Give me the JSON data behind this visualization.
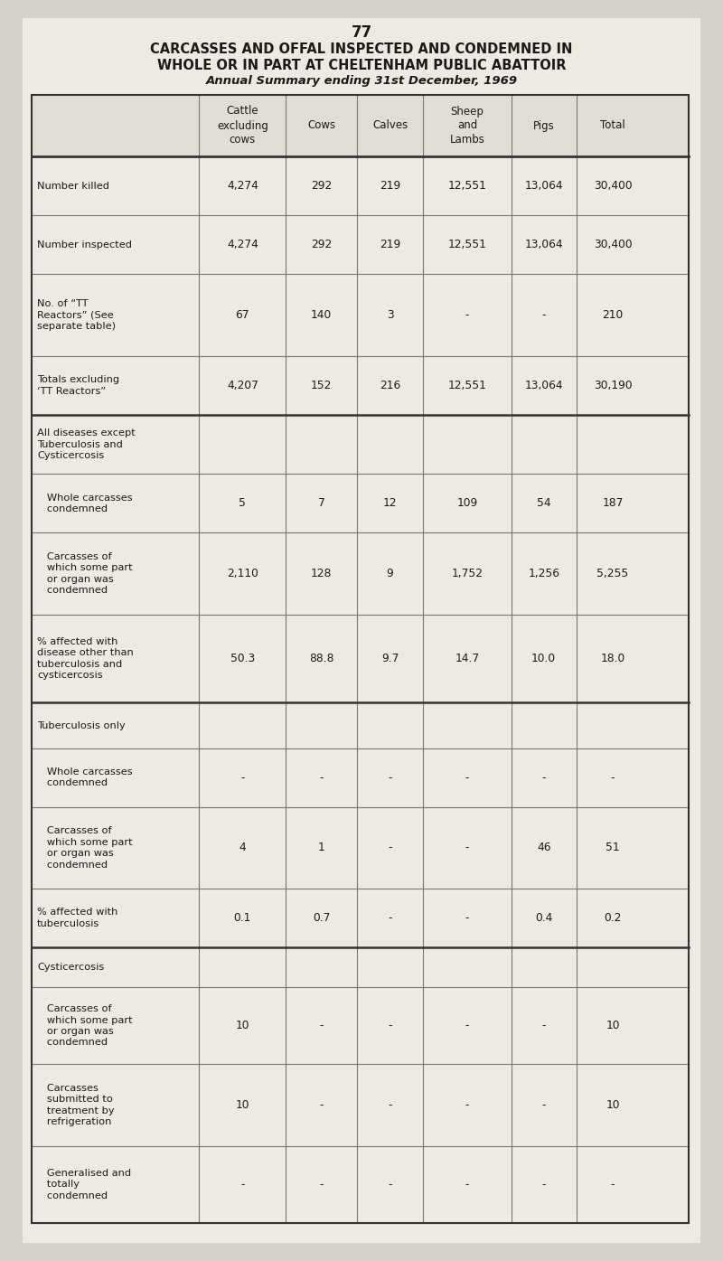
{
  "page_number": "77",
  "title_line1": "CARCASSES AND OFFAL INSPECTED AND CONDEMNED IN",
  "title_line2": "WHOLE OR IN PART AT CHELTENHAM PUBLIC ABATTOIR",
  "title_line3": "Annual Summary ending 31st December, 1969",
  "col_headers": [
    "Cattle\nexcluding\ncows",
    "Cows",
    "Calves",
    "Sheep\nand\nLambs",
    "Pigs",
    "Total"
  ],
  "rows": [
    {
      "label": "Number killed",
      "sub_label": false,
      "values": [
        "4,274",
        "292",
        "219",
        "12,551",
        "13,064",
        "30,400"
      ],
      "thick_top": true,
      "thick_bottom": false
    },
    {
      "label": "Number inspected",
      "sub_label": false,
      "values": [
        "4,274",
        "292",
        "219",
        "12,551",
        "13,064",
        "30,400"
      ],
      "thick_top": false,
      "thick_bottom": false
    },
    {
      "label": "No. of “TT\nReactors” (See\nseparate table)",
      "sub_label": false,
      "values": [
        "67",
        "140",
        "3",
        "-",
        "-",
        "210"
      ],
      "thick_top": false,
      "thick_bottom": false
    },
    {
      "label": "Totals excluding\n‘TT Reactors”",
      "sub_label": false,
      "values": [
        "4,207",
        "152",
        "216",
        "12,551",
        "13,064",
        "30,190"
      ],
      "thick_top": true,
      "thick_bottom": true
    },
    {
      "label": "All diseases except\nTuberculosis and\nCysticercosis",
      "sub_label": false,
      "values": [
        "",
        "",
        "",
        "",
        "",
        ""
      ],
      "thick_top": false,
      "thick_bottom": false,
      "header_row": true
    },
    {
      "label": "   Whole carcasses\n   condemned",
      "sub_label": true,
      "values": [
        "5",
        "7",
        "12",
        "109",
        "54",
        "187"
      ],
      "thick_top": false,
      "thick_bottom": false
    },
    {
      "label": "   Carcasses of\n   which some part\n   or organ was\n   condemned",
      "sub_label": true,
      "values": [
        "2,110",
        "128",
        "9",
        "1,752",
        "1,256",
        "5,255"
      ],
      "thick_top": false,
      "thick_bottom": false
    },
    {
      "label": "% affected with\ndisease other than\ntuberculosis and\ncysticercosis",
      "sub_label": false,
      "values": [
        "50.3",
        "88.8",
        "9.7",
        "14.7",
        "10.0",
        "18.0"
      ],
      "thick_top": false,
      "thick_bottom": true
    },
    {
      "label": "Tuberculosis only",
      "sub_label": false,
      "values": [
        "",
        "",
        "",
        "",
        "",
        ""
      ],
      "thick_top": false,
      "thick_bottom": false,
      "header_row": true
    },
    {
      "label": "   Whole carcasses\n   condemned",
      "sub_label": true,
      "values": [
        "-",
        "-",
        "-",
        "-",
        "-",
        "-"
      ],
      "thick_top": false,
      "thick_bottom": false
    },
    {
      "label": "   Carcasses of\n   which some part\n   or organ was\n   condemned",
      "sub_label": true,
      "values": [
        "4",
        "1",
        "-",
        "-",
        "46",
        "51"
      ],
      "thick_top": false,
      "thick_bottom": false
    },
    {
      "label": "% affected with\ntuberculosis",
      "sub_label": false,
      "values": [
        "0.1",
        "0.7",
        "-",
        "-",
        "0.4",
        "0.2"
      ],
      "thick_top": false,
      "thick_bottom": true
    },
    {
      "label": "Cysticercosis",
      "sub_label": false,
      "values": [
        "",
        "",
        "",
        "",
        "",
        ""
      ],
      "thick_top": false,
      "thick_bottom": false,
      "header_row": true
    },
    {
      "label": "   Carcasses of\n   which some part\n   or organ was\n   condemned",
      "sub_label": true,
      "values": [
        "10",
        "-",
        "-",
        "-",
        "-",
        "10"
      ],
      "thick_top": false,
      "thick_bottom": false
    },
    {
      "label": "   Carcasses\n   submitted to\n   treatment by\n   refrigeration",
      "sub_label": true,
      "values": [
        "10",
        "-",
        "-",
        "-",
        "-",
        "10"
      ],
      "thick_top": false,
      "thick_bottom": false
    },
    {
      "label": "   Generalised and\n   totally\n   condemned",
      "sub_label": true,
      "values": [
        "-",
        "-",
        "-",
        "-",
        "-",
        "-"
      ],
      "thick_top": false,
      "thick_bottom": false
    }
  ],
  "bg_color": "#eceae3",
  "cell_bg": "#eceae3",
  "text_color": "#1a1a1a",
  "line_color": "#777777",
  "thick_line_color": "#333333",
  "page_bg": "#d5d2ca"
}
